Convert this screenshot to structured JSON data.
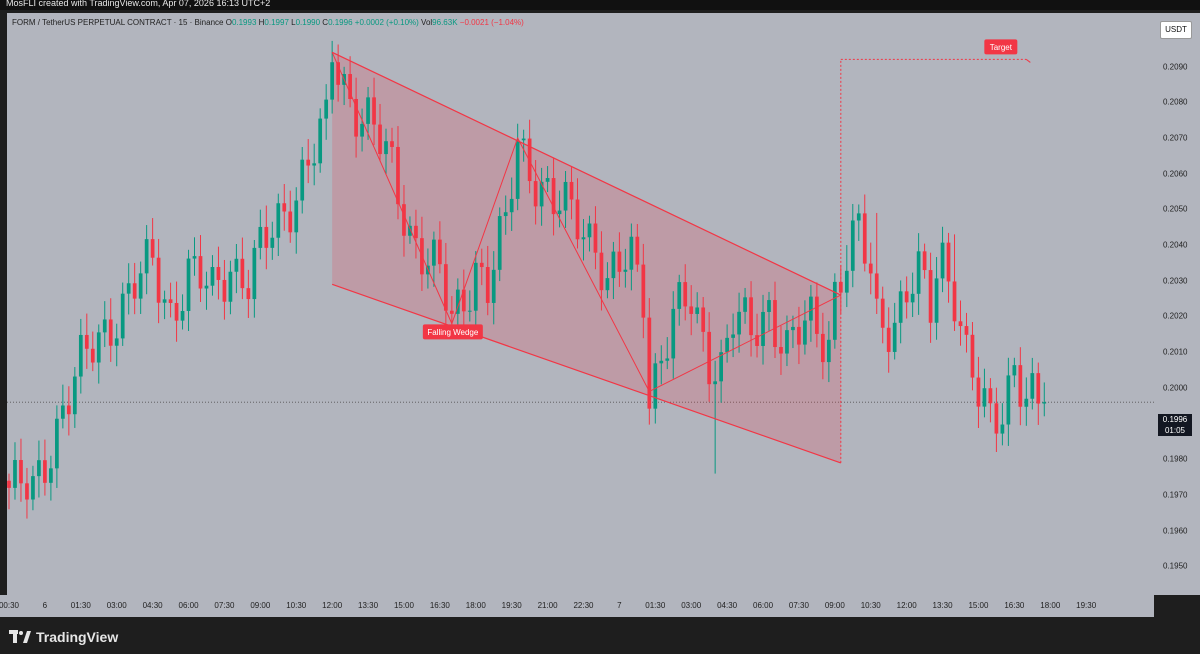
{
  "header": {
    "credit": "MosFLI created with TradingView.com, Apr 07, 2026 16:13 UTC+2"
  },
  "legend": {
    "symbol": "FORM / TetherUS PERPETUAL CONTRACT · 15 · Binance",
    "open_label": "O",
    "open": "0.1993",
    "high_label": "H",
    "high": "0.1997",
    "low_label": "L",
    "low": "0.1990",
    "close_label": "C",
    "close": "0.1996",
    "change": "+0.0002 (+0.10%)",
    "vol_label": "Vol",
    "vol": "96.63K",
    "vol_change": "−0.0021 (−1.04%)"
  },
  "currency": "USDT",
  "price_label": {
    "price": "0.1996",
    "countdown": "01:05"
  },
  "footer": {
    "brand": "TradingView"
  },
  "colors": {
    "up": "#089981",
    "down": "#f23645",
    "pattern": "#f23645",
    "background": "#b2b5be"
  },
  "chart_data": {
    "type": "candlestick",
    "title": "",
    "symbol": "FORMUSDT.P",
    "interval": "15",
    "exchange": "Binance",
    "ylim": [
      0.1942,
      0.2105
    ],
    "ytick_values": [
      0.21,
      0.209,
      0.208,
      0.207,
      0.206,
      0.205,
      0.204,
      0.203,
      0.202,
      0.201,
      0.2,
      0.199,
      0.198,
      0.197,
      0.196,
      0.195
    ],
    "ytick_labels": [
      "0.2100",
      "0.2090",
      "0.2080",
      "0.2070",
      "0.2060",
      "0.2050",
      "0.2040",
      "0.2030",
      "0.2020",
      "0.2010",
      "0.2000",
      "0.1990",
      "0.1980",
      "0.1970",
      "0.1960",
      "0.1950"
    ],
    "x_index_range": [
      0,
      191
    ],
    "xticks": [
      {
        "i": 0,
        "label": "00:30"
      },
      {
        "i": 6,
        "label": "6"
      },
      {
        "i": 12,
        "label": "01:30"
      },
      {
        "i": 18,
        "label": "03:00"
      },
      {
        "i": 24,
        "label": "04:30"
      },
      {
        "i": 30,
        "label": "06:00"
      },
      {
        "i": 36,
        "label": "07:30"
      },
      {
        "i": 42,
        "label": "09:00"
      },
      {
        "i": 48,
        "label": "10:30"
      },
      {
        "i": 54,
        "label": "12:00"
      },
      {
        "i": 60,
        "label": "13:30"
      },
      {
        "i": 66,
        "label": "15:00"
      },
      {
        "i": 72,
        "label": "16:30"
      },
      {
        "i": 78,
        "label": "18:00"
      },
      {
        "i": 84,
        "label": "19:30"
      },
      {
        "i": 90,
        "label": "21:00"
      },
      {
        "i": 96,
        "label": "22:30"
      },
      {
        "i": 102,
        "label": "7"
      },
      {
        "i": 108,
        "label": "01:30"
      },
      {
        "i": 114,
        "label": "03:00"
      },
      {
        "i": 120,
        "label": "04:30"
      },
      {
        "i": 126,
        "label": "06:00"
      },
      {
        "i": 132,
        "label": "07:30"
      },
      {
        "i": 138,
        "label": "09:00"
      },
      {
        "i": 144,
        "label": "10:30"
      },
      {
        "i": 150,
        "label": "12:00"
      },
      {
        "i": 156,
        "label": "13:30"
      },
      {
        "i": 162,
        "label": "15:00"
      },
      {
        "i": 168,
        "label": "16:30"
      },
      {
        "i": 174,
        "label": "18:00"
      },
      {
        "i": 180,
        "label": "19:30"
      }
    ],
    "close_path": [
      [
        0,
        0.1972
      ],
      [
        4,
        0.197
      ],
      [
        9,
        0.1995
      ],
      [
        12,
        0.2005
      ],
      [
        18,
        0.2022
      ],
      [
        24,
        0.2034
      ],
      [
        27,
        0.2022
      ],
      [
        30,
        0.2032
      ],
      [
        34,
        0.2026
      ],
      [
        37,
        0.2036
      ],
      [
        40,
        0.203
      ],
      [
        46,
        0.205
      ],
      [
        49,
        0.206
      ],
      [
        53,
        0.2072
      ],
      [
        54,
        0.2093
      ],
      [
        57,
        0.2082
      ],
      [
        60,
        0.2075
      ],
      [
        64,
        0.206
      ],
      [
        67,
        0.2045
      ],
      [
        72,
        0.203
      ],
      [
        74,
        0.2018
      ],
      [
        78,
        0.2035
      ],
      [
        80,
        0.2028
      ],
      [
        83,
        0.2044
      ],
      [
        85,
        0.207
      ],
      [
        88,
        0.206
      ],
      [
        91,
        0.205
      ],
      [
        95,
        0.2048
      ],
      [
        98,
        0.2042
      ],
      [
        100,
        0.2028
      ],
      [
        104,
        0.2036
      ],
      [
        106,
        0.2028
      ],
      [
        107,
        0.2
      ],
      [
        111,
        0.2018
      ],
      [
        114,
        0.2024
      ],
      [
        117,
        0.201
      ],
      [
        119,
        0.2006
      ],
      [
        121,
        0.2018
      ],
      [
        124,
        0.2015
      ],
      [
        127,
        0.2024
      ],
      [
        130,
        0.201
      ],
      [
        134,
        0.2018
      ],
      [
        137,
        0.2015
      ],
      [
        138,
        0.2028
      ],
      [
        140,
        0.2036
      ],
      [
        142,
        0.2042
      ],
      [
        144,
        0.2032
      ],
      [
        145,
        0.202
      ],
      [
        148,
        0.202
      ],
      [
        150,
        0.2026
      ],
      [
        152,
        0.203
      ],
      [
        154,
        0.2022
      ],
      [
        155,
        0.2034
      ],
      [
        156,
        0.2038
      ],
      [
        158,
        0.2028
      ],
      [
        160,
        0.2008
      ],
      [
        162,
        0.1996
      ],
      [
        164,
        0.199
      ],
      [
        166,
        0.1996
      ],
      [
        168,
        0.2008
      ],
      [
        170,
        0.1996
      ],
      [
        171,
        0.1995
      ],
      [
        172,
        0.1993
      ],
      [
        173,
        0.1996
      ]
    ],
    "pattern": {
      "name": "Falling Wedge",
      "upper_line": [
        [
          54,
          0.2094
        ],
        [
          139,
          0.2026
        ]
      ],
      "lower_line": [
        [
          54,
          0.2029
        ],
        [
          139,
          0.1979
        ]
      ],
      "zigzag": [
        [
          54,
          0.2094
        ],
        [
          74,
          0.2018
        ],
        [
          85,
          0.207
        ],
        [
          107,
          0.1999
        ],
        [
          139,
          0.2026
        ]
      ],
      "target_label": "Target",
      "target_price": 0.2092,
      "target_from_index": 139,
      "target_to_index": 170
    },
    "last_price": 0.1996
  }
}
